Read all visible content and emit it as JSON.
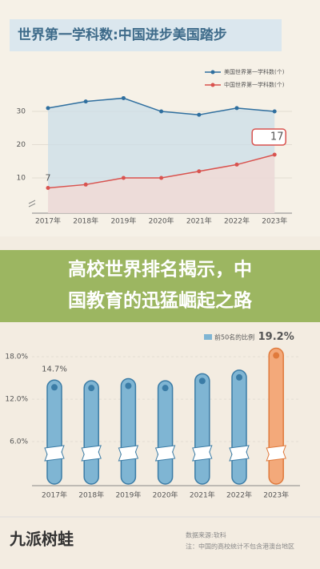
{
  "chart_data": [
    {
      "type": "line",
      "title": "世界第一学科数:中国进步美国踏步",
      "categories": [
        "2017年",
        "2018年",
        "2019年",
        "2020年",
        "2021年",
        "2022年",
        "2023年"
      ],
      "series": [
        {
          "name": "美国世界第一学科数(个)",
          "color": "#2f6f9f",
          "values": [
            31,
            33,
            34,
            30,
            29,
            31,
            30
          ]
        },
        {
          "name": "中国世界第一学科数(个)",
          "color": "#d9534f",
          "values": [
            7,
            8,
            10,
            10,
            12,
            14,
            17
          ],
          "value_labels": [
            "7",
            null,
            null,
            null,
            null,
            null,
            "17"
          ]
        }
      ],
      "ylim": [
        0,
        37
      ],
      "yticks": [
        10,
        20,
        30
      ],
      "grid": true
    },
    {
      "type": "bar",
      "legend": "前50名的比例",
      "categories": [
        "2017年",
        "2018年",
        "2019年",
        "2020年",
        "2021年",
        "2022年",
        "2023年"
      ],
      "values": [
        14.7,
        14.6,
        14.9,
        14.6,
        15.6,
        16.1,
        19.2
      ],
      "value_labels": [
        "14.7%",
        null,
        null,
        null,
        null,
        null,
        "19.2%"
      ],
      "colors": [
        "#7fb5d3",
        "#7fb5d3",
        "#7fb5d3",
        "#7fb5d3",
        "#7fb5d3",
        "#7fb5d3",
        "#f3a97a"
      ],
      "ylim": [
        0,
        20
      ],
      "yticks": [
        {
          "value": 6,
          "label": "6.0%"
        },
        {
          "value": 12,
          "label": "12.0%"
        },
        {
          "value": 18,
          "label": "18.0%"
        }
      ],
      "grid": true
    }
  ],
  "headline": [
    "高校世界排名揭示，中",
    "国教育的迅猛崛起之路"
  ],
  "footer": {
    "brand": "九派树蛙",
    "source": "数据来源:软科",
    "note": "注：中国的高校统计不包含港澳台地区"
  }
}
